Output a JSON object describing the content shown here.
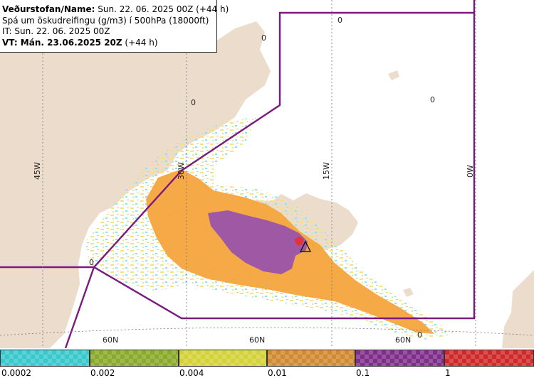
{
  "info": {
    "line1_label": "Veðurstofan/Name:",
    "line1_value": " Sun. 22. 06. 2025 00Z (+44 h)",
    "line2": "Spá um öskudreifingu (g/m3) í 500hPa (18000ft)",
    "line3": "IT: Sun. 22. 06. 2025 00Z",
    "line4_label": "VT: Mán. 23.06.2025 20Z",
    "line4_value": " (+44 h)"
  },
  "map": {
    "longitude_labels": [
      "45W",
      "30W",
      "15W",
      "0W"
    ],
    "latitude_labels": [
      "60N",
      "60N",
      "60N"
    ],
    "contour_zero_labels": [
      "0",
      "0",
      "0",
      "0",
      "0",
      "0"
    ],
    "colors": {
      "land": "#ecdccc",
      "sea": "#ffffff",
      "boundary": "#7a1a7e",
      "ash_orange": "#f6a53d",
      "ash_purple": "#9a53a9",
      "ash_red": "#e5313a",
      "speckle_yellow": "#f3e27a",
      "speckle_cyan": "#7fe8ea"
    }
  },
  "legend": {
    "colors": [
      "#39c8cc",
      "#8aaa2c",
      "#d4d239",
      "#cf8a32",
      "#7f2f8a",
      "#cf2a2a"
    ],
    "ticks": [
      "0.0002",
      "0.002",
      "0.004",
      "0.01",
      "0.1",
      "1"
    ]
  }
}
